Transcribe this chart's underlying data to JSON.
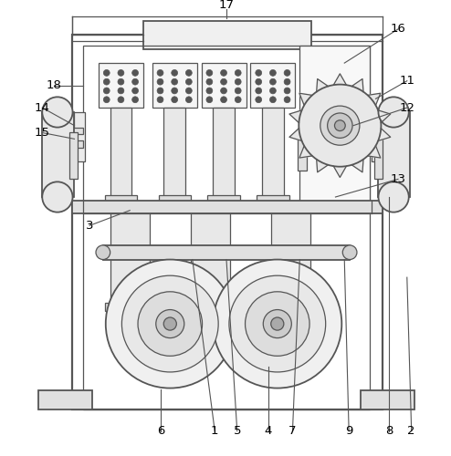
{
  "background_color": "#ffffff",
  "line_color": "#555555",
  "label_color": "#000000",
  "label_fontsize": 9.5,
  "fig_width": 4.94,
  "fig_height": 5.0,
  "dpi": 100
}
